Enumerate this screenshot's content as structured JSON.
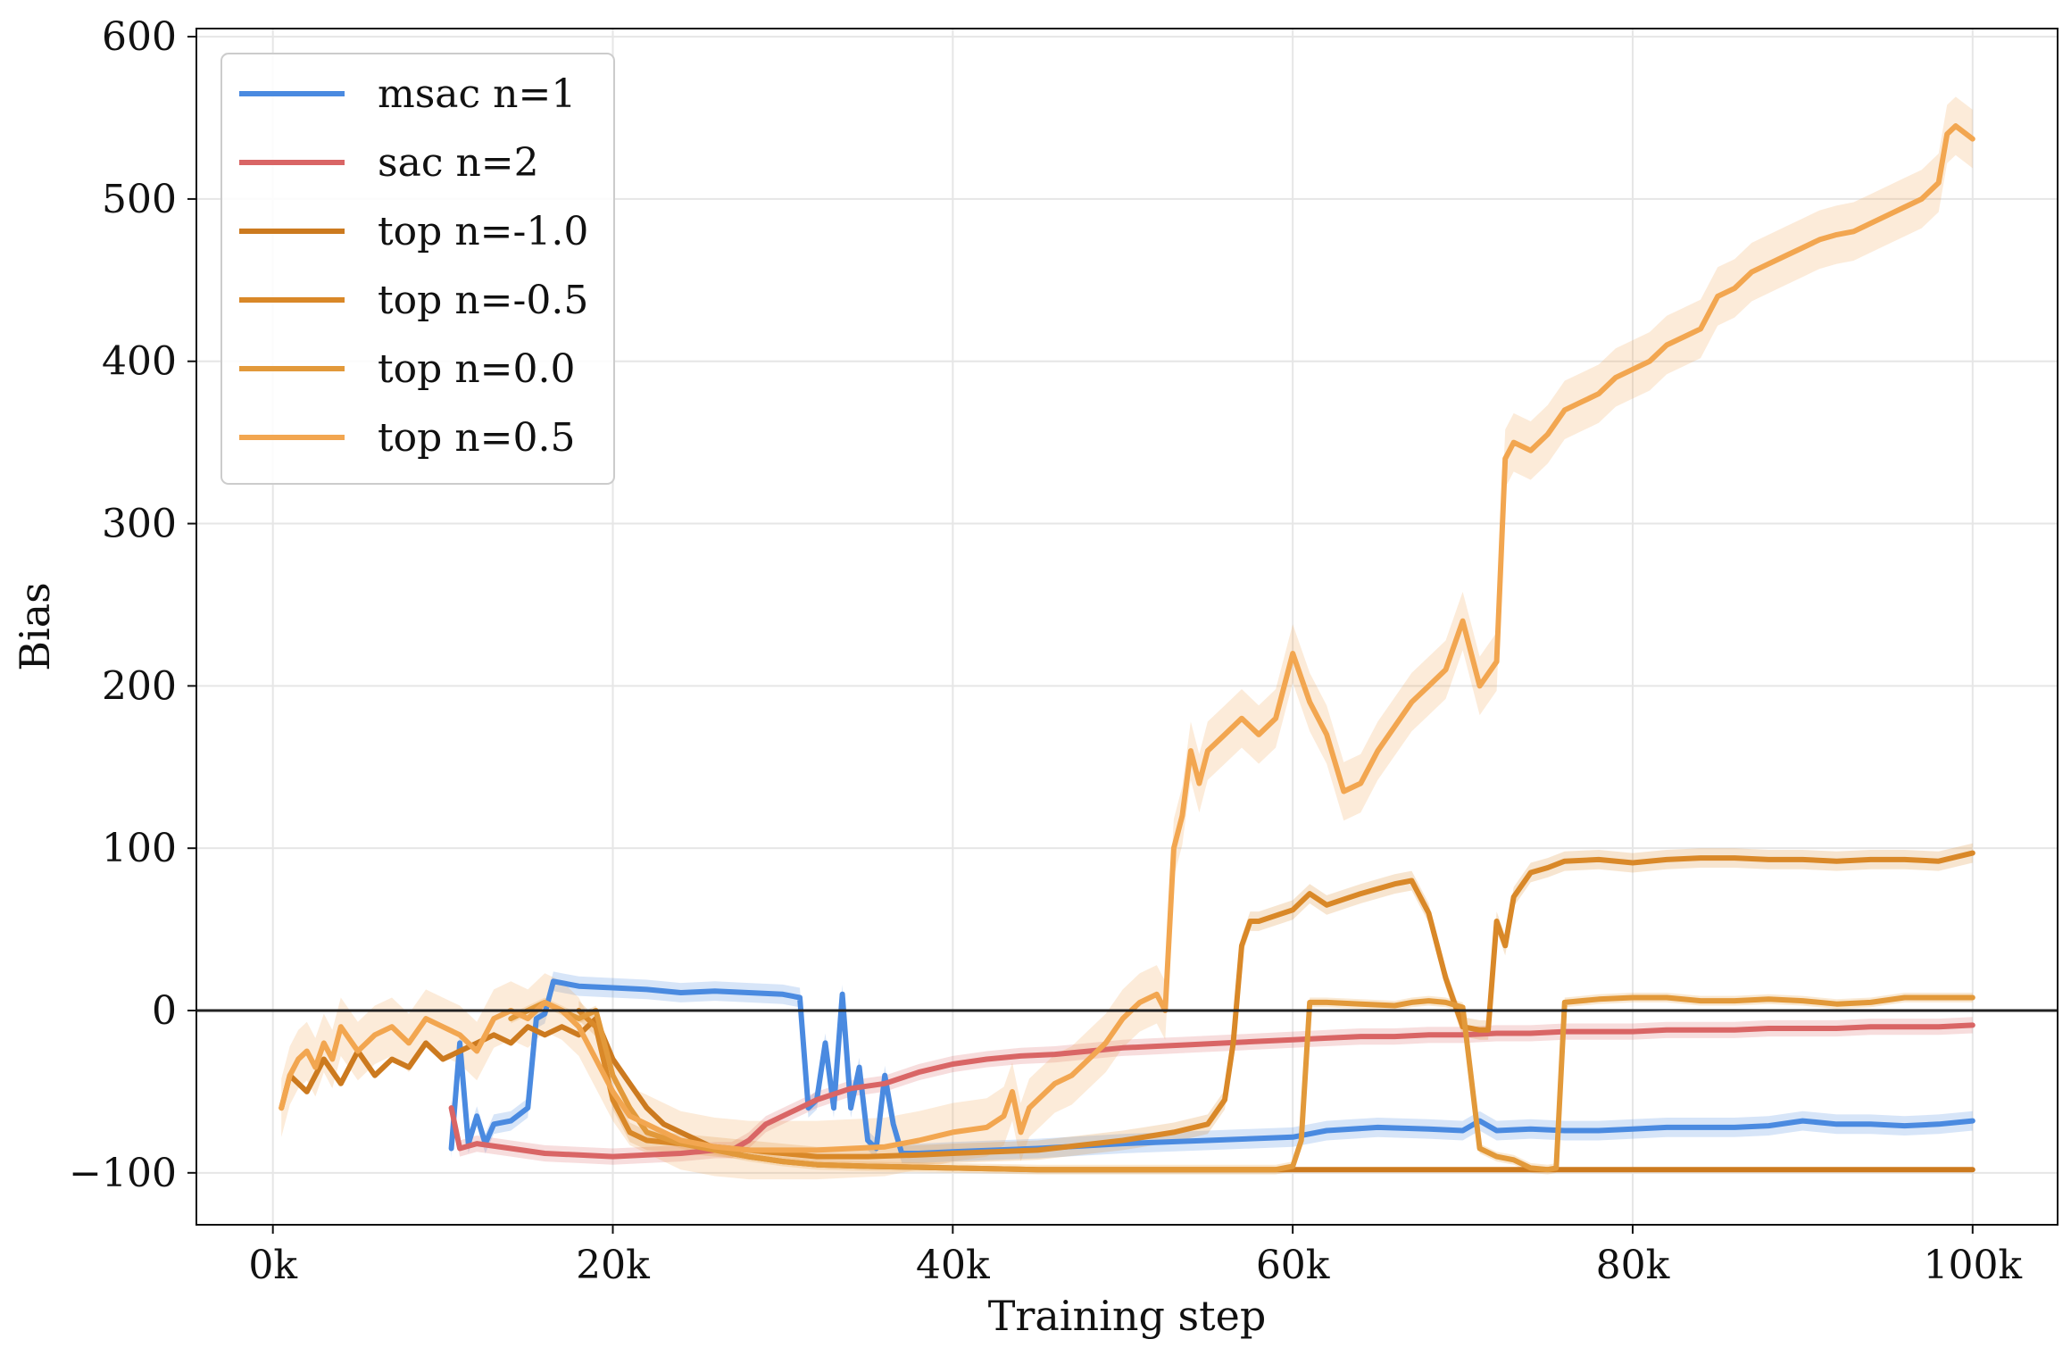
{
  "chart_data": {
    "type": "line",
    "title": "",
    "xlabel": "Training step",
    "ylabel": "Bias",
    "xlim": [
      -4500,
      105000
    ],
    "ylim": [
      -132,
      605
    ],
    "xticks": [
      0,
      20000,
      40000,
      60000,
      80000,
      100000
    ],
    "xtick_labels": [
      "0k",
      "20k",
      "40k",
      "60k",
      "80k",
      "100k"
    ],
    "yticks": [
      -100,
      0,
      100,
      200,
      300,
      400,
      500,
      600
    ],
    "ytick_labels": [
      "−100",
      "0",
      "100",
      "200",
      "300",
      "400",
      "500",
      "600"
    ],
    "grid": true,
    "legend_position": "upper-left",
    "reference_line": 0,
    "series": [
      {
        "name": "msac n=1",
        "color": "#4a8ae0",
        "x": [
          10500,
          11000,
          11500,
          12000,
          12500,
          13000,
          14000,
          15000,
          15500,
          16000,
          16500,
          17000,
          18000,
          20000,
          22000,
          24000,
          26000,
          28000,
          30000,
          31000,
          31500,
          32000,
          32500,
          33000,
          33500,
          34000,
          34500,
          35000,
          35500,
          36000,
          36500,
          37000,
          38000,
          40000,
          45000,
          50000,
          55000,
          60000,
          62000,
          65000,
          68000,
          70000,
          71000,
          72000,
          74000,
          76000,
          78000,
          80000,
          82000,
          84000,
          86000,
          88000,
          90000,
          92000,
          94000,
          96000,
          98000,
          100000
        ],
        "y": [
          -85,
          -20,
          -82,
          -65,
          -82,
          -70,
          -68,
          -60,
          -5,
          -2,
          18,
          17,
          15,
          14,
          13,
          11,
          12,
          11,
          10,
          8,
          -60,
          -55,
          -20,
          -60,
          10,
          -60,
          -35,
          -80,
          -85,
          -40,
          -70,
          -88,
          -88,
          -87,
          -85,
          -82,
          -80,
          -78,
          -74,
          -72,
          -73,
          -74,
          -68,
          -74,
          -73,
          -74,
          -74,
          -73,
          -72,
          -72,
          -72,
          -71,
          -68,
          -70,
          -70,
          -71,
          -70,
          -68
        ],
        "band": 6
      },
      {
        "name": "sac n=2",
        "color": "#d96565",
        "x": [
          10500,
          11000,
          12000,
          14000,
          16000,
          18000,
          20000,
          22000,
          24000,
          26000,
          27000,
          28000,
          29000,
          30000,
          32000,
          34000,
          36000,
          38000,
          40000,
          42000,
          44000,
          46000,
          48000,
          50000,
          52000,
          54000,
          56000,
          58000,
          60000,
          62000,
          64000,
          66000,
          68000,
          70000,
          72000,
          74000,
          76000,
          78000,
          80000,
          82000,
          84000,
          86000,
          88000,
          90000,
          92000,
          94000,
          96000,
          98000,
          100000
        ],
        "y": [
          -60,
          -85,
          -82,
          -85,
          -88,
          -89,
          -90,
          -89,
          -88,
          -86,
          -86,
          -80,
          -70,
          -65,
          -55,
          -48,
          -45,
          -38,
          -33,
          -30,
          -28,
          -27,
          -25,
          -23,
          -22,
          -21,
          -20,
          -19,
          -18,
          -17,
          -16,
          -16,
          -15,
          -15,
          -14,
          -14,
          -13,
          -13,
          -13,
          -12,
          -12,
          -12,
          -11,
          -11,
          -11,
          -10,
          -10,
          -10,
          -9
        ],
        "band": 5
      },
      {
        "name": "top n=-1.0",
        "color": "#cc7a1f",
        "x": [
          500,
          1000,
          2000,
          3000,
          4000,
          5000,
          6000,
          7000,
          8000,
          9000,
          10000,
          11000,
          12000,
          13000,
          14000,
          15000,
          16000,
          17000,
          18000,
          19000,
          20000,
          21000,
          22000,
          23000,
          24000,
          25000,
          26000,
          27000,
          28000,
          30000,
          32000,
          35000,
          40000,
          45000,
          50000,
          55000,
          60000,
          65000,
          70000,
          75000,
          80000,
          85000,
          90000,
          95000,
          100000
        ],
        "y": [
          -60,
          -40,
          -50,
          -30,
          -45,
          -25,
          -40,
          -30,
          -35,
          -20,
          -30,
          -25,
          -20,
          -15,
          -20,
          -10,
          -15,
          -10,
          -15,
          -5,
          -30,
          -45,
          -60,
          -70,
          -75,
          -80,
          -85,
          -88,
          -90,
          -93,
          -95,
          -96,
          -97,
          -98,
          -98,
          -98,
          -98,
          -98,
          -98,
          -98,
          -98,
          -98,
          -98,
          -98,
          -98
        ],
        "band": 0
      },
      {
        "name": "top n=-0.5",
        "color": "#d98828",
        "x": [
          18000,
          19000,
          20000,
          21000,
          22000,
          24000,
          26000,
          28000,
          30000,
          32000,
          35000,
          38000,
          40000,
          45000,
          50000,
          53000,
          55000,
          56000,
          56500,
          57000,
          57500,
          58000,
          60000,
          61000,
          62000,
          64000,
          66000,
          67000,
          68000,
          69000,
          70000,
          71000,
          71500,
          72000,
          72500,
          73000,
          74000,
          75000,
          76000,
          78000,
          80000,
          82000,
          84000,
          86000,
          88000,
          90000,
          92000,
          94000,
          96000,
          98000,
          100000
        ],
        "y": [
          0,
          -10,
          -55,
          -75,
          -80,
          -82,
          -84,
          -86,
          -88,
          -90,
          -90,
          -89,
          -88,
          -86,
          -80,
          -75,
          -70,
          -55,
          -20,
          40,
          55,
          55,
          62,
          72,
          65,
          72,
          78,
          80,
          60,
          20,
          -10,
          -12,
          -12,
          55,
          40,
          70,
          85,
          88,
          92,
          93,
          91,
          93,
          94,
          94,
          93,
          93,
          92,
          93,
          93,
          92,
          97
        ],
        "band": 6
      },
      {
        "name": "top n=0.0",
        "color": "#e2993a",
        "x": [
          14000,
          15000,
          16000,
          17000,
          18000,
          19000,
          20000,
          21000,
          22000,
          24000,
          26000,
          28000,
          30000,
          32000,
          35000,
          40000,
          45000,
          50000,
          55000,
          58000,
          59000,
          60000,
          60500,
          61000,
          62000,
          64000,
          66000,
          67000,
          68000,
          69000,
          70000,
          71000,
          72000,
          73000,
          74000,
          75000,
          75500,
          76000,
          78000,
          80000,
          82000,
          84000,
          86000,
          88000,
          90000,
          92000,
          94000,
          96000,
          98000,
          100000
        ],
        "y": [
          -5,
          0,
          5,
          0,
          -5,
          0,
          -40,
          -60,
          -75,
          -82,
          -86,
          -90,
          -93,
          -95,
          -96,
          -97,
          -98,
          -98,
          -98,
          -98,
          -98,
          -96,
          -80,
          5,
          5,
          4,
          3,
          5,
          6,
          5,
          2,
          -85,
          -90,
          -92,
          -97,
          -98,
          -97,
          5,
          7,
          8,
          8,
          6,
          6,
          7,
          6,
          4,
          5,
          8,
          8,
          8
        ],
        "band": 3
      },
      {
        "name": "top n=0.5",
        "color": "#f2a650",
        "x": [
          500,
          1000,
          1500,
          2000,
          2500,
          3000,
          3500,
          4000,
          5000,
          6000,
          7000,
          8000,
          9000,
          10000,
          11000,
          12000,
          13000,
          14000,
          15000,
          16000,
          17000,
          18000,
          19000,
          20000,
          21000,
          22000,
          23000,
          24000,
          25000,
          26000,
          27000,
          28000,
          30000,
          32000,
          34000,
          36000,
          38000,
          40000,
          42000,
          43000,
          43500,
          44000,
          44500,
          45000,
          46000,
          47000,
          48000,
          49000,
          50000,
          51000,
          52000,
          52500,
          53000,
          53500,
          54000,
          54500,
          55000,
          56000,
          57000,
          58000,
          59000,
          60000,
          61000,
          62000,
          63000,
          64000,
          65000,
          66000,
          67000,
          68000,
          69000,
          70000,
          71000,
          72000,
          72500,
          73000,
          74000,
          75000,
          76000,
          77000,
          78000,
          79000,
          80000,
          81000,
          82000,
          83000,
          84000,
          85000,
          86000,
          87000,
          88000,
          89000,
          90000,
          91000,
          92000,
          93000,
          94000,
          95000,
          96000,
          97000,
          98000,
          98500,
          99000,
          100000
        ],
        "y": [
          -60,
          -40,
          -30,
          -25,
          -35,
          -20,
          -30,
          -10,
          -25,
          -15,
          -10,
          -20,
          -5,
          -10,
          -15,
          -25,
          -5,
          0,
          -5,
          5,
          0,
          -10,
          -30,
          -50,
          -65,
          -70,
          -75,
          -80,
          -82,
          -84,
          -85,
          -86,
          -86,
          -86,
          -85,
          -84,
          -80,
          -75,
          -72,
          -65,
          -50,
          -75,
          -60,
          -55,
          -45,
          -40,
          -30,
          -20,
          -5,
          5,
          10,
          0,
          100,
          120,
          160,
          140,
          160,
          170,
          180,
          170,
          180,
          220,
          190,
          170,
          135,
          140,
          160,
          175,
          190,
          200,
          210,
          240,
          200,
          215,
          340,
          350,
          345,
          355,
          370,
          375,
          380,
          390,
          395,
          400,
          410,
          415,
          420,
          440,
          445,
          455,
          460,
          465,
          470,
          475,
          478,
          480,
          485,
          490,
          495,
          500,
          510,
          540,
          545,
          537
        ],
        "band": 18
      }
    ]
  }
}
